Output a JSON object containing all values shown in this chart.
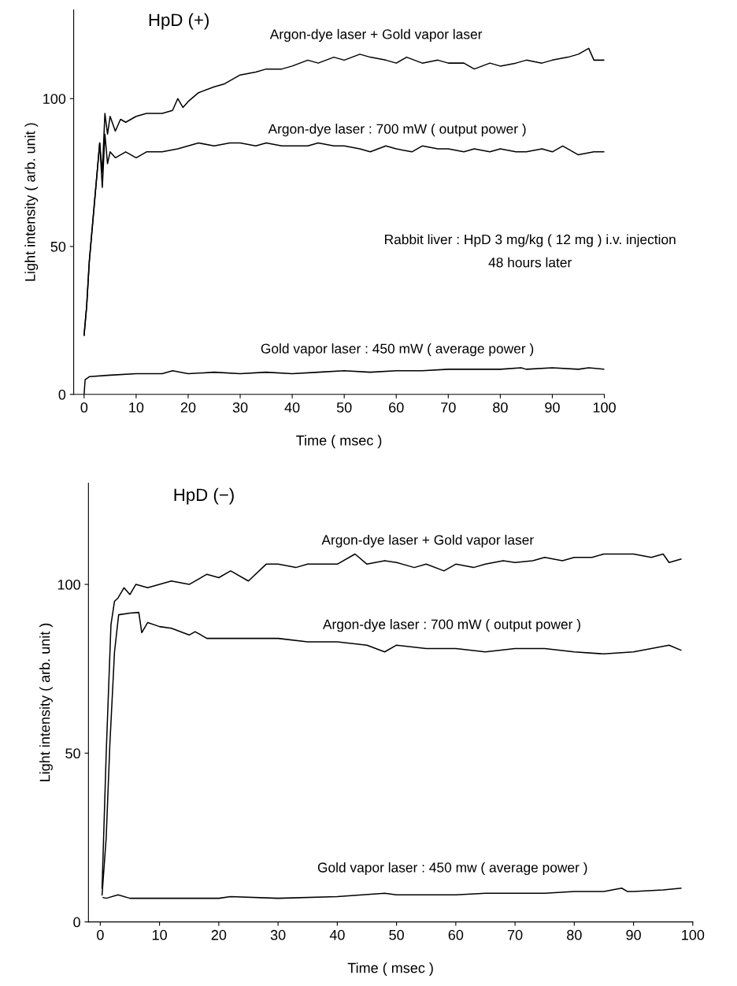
{
  "chart_data": [
    {
      "type": "line",
      "title": "HpD (+)",
      "xlabel": "Time ( msec )",
      "ylabel": "Light intensity ( arb. unit )",
      "xlim": [
        -2,
        100
      ],
      "ylim": [
        0,
        130
      ],
      "xticks": [
        0,
        10,
        20,
        30,
        40,
        50,
        60,
        70,
        80,
        90,
        100
      ],
      "yticks": [
        0,
        50,
        100
      ],
      "grid": false,
      "legend": false,
      "annotations": [
        "Rabbit liver : HpD 3 mg/kg ( 12 mg ) i.v. injection",
        "48 hours later"
      ],
      "series": [
        {
          "name": "Argon-dye laser + Gold vapor laser",
          "color": "#000000",
          "x": [
            0,
            0.5,
            1,
            2,
            3,
            3.5,
            4,
            4.5,
            5,
            6,
            7,
            8,
            10,
            12,
            15,
            17,
            18,
            19,
            20,
            22,
            25,
            27,
            30,
            33,
            35,
            38,
            40,
            43,
            45,
            48,
            50,
            53,
            55,
            58,
            60,
            62,
            65,
            68,
            70,
            73,
            75,
            78,
            80,
            83,
            85,
            88,
            90,
            93,
            95,
            97,
            98,
            100
          ],
          "values": [
            20,
            30,
            45,
            65,
            85,
            75,
            95,
            88,
            94,
            89,
            93,
            92,
            94,
            95,
            95,
            96,
            100,
            97,
            99,
            102,
            104,
            105,
            108,
            109,
            110,
            110,
            111,
            113,
            112,
            114,
            113,
            115,
            114,
            113,
            112,
            114,
            112,
            113,
            112,
            112,
            110,
            112,
            111,
            112,
            113,
            112,
            113,
            114,
            115,
            117,
            113,
            113
          ]
        },
        {
          "name": "Argon-dye laser : 700 mW ( output power )",
          "color": "#000000",
          "x": [
            0,
            0.5,
            1,
            2,
            3,
            3.5,
            4,
            4.5,
            5,
            6,
            8,
            10,
            12,
            15,
            18,
            20,
            22,
            25,
            28,
            30,
            33,
            35,
            38,
            40,
            43,
            45,
            48,
            50,
            53,
            55,
            58,
            60,
            63,
            65,
            68,
            70,
            73,
            75,
            78,
            80,
            83,
            85,
            88,
            90,
            92,
            95,
            98,
            100
          ],
          "values": [
            20,
            30,
            45,
            65,
            85,
            70,
            88,
            78,
            82,
            80,
            82,
            80,
            82,
            82,
            83,
            84,
            85,
            84,
            85,
            85,
            84,
            85,
            84,
            84,
            84,
            85,
            84,
            84,
            83,
            82,
            84,
            83,
            82,
            84,
            83,
            83,
            82,
            83,
            82,
            83,
            82,
            82,
            83,
            82,
            84,
            81,
            82,
            82
          ]
        },
        {
          "name": "Gold vapor laser : 450 mW ( average power )",
          "color": "#000000",
          "x": [
            0,
            0.2,
            1,
            5,
            10,
            15,
            17,
            20,
            25,
            30,
            35,
            40,
            45,
            50,
            55,
            60,
            65,
            70,
            75,
            80,
            84,
            85,
            90,
            95,
            97,
            100
          ],
          "values": [
            0,
            5,
            6,
            6.5,
            7,
            7,
            8,
            7,
            7.5,
            7,
            7.5,
            7,
            7.5,
            8,
            7.5,
            8,
            8,
            8.5,
            8.5,
            8.5,
            9,
            8.5,
            9,
            8.5,
            9,
            8.5
          ]
        }
      ]
    },
    {
      "type": "line",
      "title": "HpD (−)",
      "xlabel": "Time ( msec )",
      "ylabel": "Light intensity ( arb. unit )",
      "xlim": [
        -2,
        100
      ],
      "ylim": [
        0,
        130
      ],
      "xticks": [
        0,
        10,
        20,
        30,
        40,
        50,
        60,
        70,
        80,
        90,
        100
      ],
      "yticks": [
        0,
        50,
        100
      ],
      "grid": false,
      "legend": false,
      "series": [
        {
          "name": "Argon-dye laser + Gold vapor laser",
          "color": "#000000",
          "x": [
            0.3,
            1,
            1.8,
            2.4,
            3,
            4,
            5,
            6,
            8,
            10,
            12,
            15,
            18,
            20,
            22,
            25,
            28,
            30,
            33,
            35,
            38,
            40,
            43,
            45,
            48,
            50,
            53,
            55,
            58,
            60,
            63,
            65,
            68,
            70,
            73,
            75,
            78,
            80,
            83,
            85,
            88,
            90,
            93,
            95,
            96,
            98
          ],
          "values": [
            10,
            50,
            88,
            95,
            96,
            99,
            97,
            100,
            99,
            100,
            101,
            100,
            103,
            102,
            104,
            101,
            106,
            106,
            105,
            106,
            106,
            106,
            109,
            106,
            107,
            106.5,
            105,
            106,
            104,
            106,
            105,
            106,
            107,
            106.5,
            107,
            108,
            107,
            108,
            108,
            109,
            109,
            109,
            108,
            109,
            106.5,
            107.5
          ]
        },
        {
          "name": "Argon-dye laser : 700 mW ( output power )",
          "color": "#000000",
          "x": [
            0.3,
            1,
            1.6,
            2.4,
            3.1,
            5,
            6.5,
            7,
            8,
            10,
            12,
            15,
            16,
            18,
            20,
            25,
            30,
            35,
            40,
            45,
            48,
            50,
            55,
            60,
            65,
            70,
            75,
            80,
            85,
            90,
            93,
            96,
            98
          ],
          "values": [
            8,
            25,
            52,
            80,
            91,
            91.5,
            91.7,
            85.7,
            88.7,
            87.5,
            87,
            85,
            86,
            84,
            84,
            84,
            84,
            83,
            83,
            82,
            80,
            82,
            81,
            81,
            80,
            81,
            81,
            80,
            79.4,
            80,
            81,
            82,
            80.5
          ]
        },
        {
          "name": "Gold vapor laser : 450 mw ( average power )",
          "color": "#000000",
          "x": [
            0.5,
            1,
            3,
            5,
            10,
            20,
            22,
            30,
            40,
            48,
            50,
            60,
            65,
            70,
            75,
            80,
            85,
            88,
            89,
            90,
            95,
            98
          ],
          "values": [
            7.2,
            7,
            8,
            7,
            7,
            7,
            7.5,
            7,
            7.5,
            8.5,
            8,
            8,
            8.5,
            8.5,
            8.5,
            9,
            9,
            10,
            9,
            9,
            9.5,
            10
          ]
        }
      ]
    }
  ]
}
